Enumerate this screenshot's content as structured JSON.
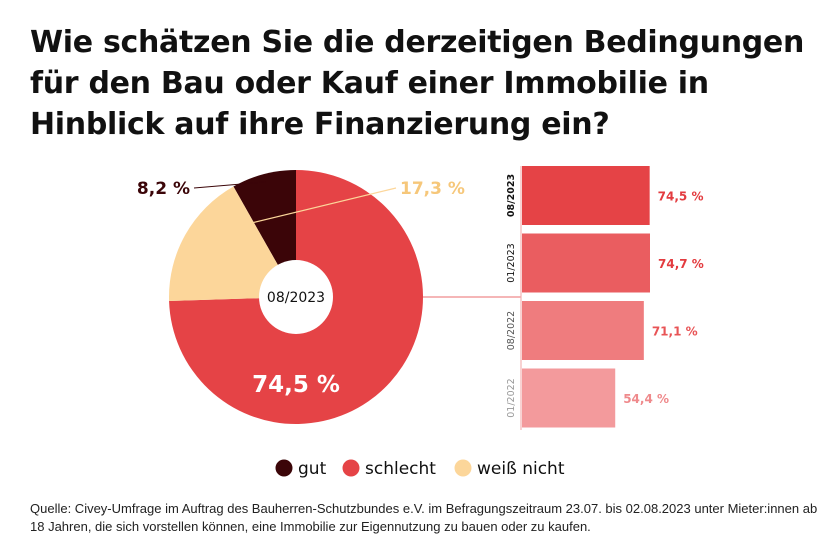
{
  "title": "Wie schätzen Sie die derzeitigen Bedingungen für den Bau oder Kauf einer Immobilie in Hinblick auf ihre Finanzierung ein?",
  "source": "Quelle: Civey-Umfrage im Auftrag des Bauherren-Schutzbundes e.V. im Befragungszeitraum 23.07. bis 02.08.2023 unter Mieter:innen ab 18 Jahren, die sich vorstellen können, eine Immobilie zur Eigennutzung zu bauen oder zu kaufen.",
  "colors": {
    "gut": "#3b0508",
    "schlecht": "#e54346",
    "weiss_nicht": "#fcd69a",
    "bars": [
      "#e54346",
      "#ea5d60",
      "#ef7c7e",
      "#f39a9c"
    ],
    "bar_labels": [
      "#e33b3f",
      "#e33b3f",
      "#e85456",
      "#ef8a8c"
    ],
    "period_labels": [
      "#111111",
      "#111111",
      "#555555",
      "#999999"
    ]
  },
  "chart_data": [
    {
      "type": "pie",
      "center_label": "08/2023",
      "slices": [
        {
          "name": "gut",
          "value": 8.2,
          "label": "8,2 %"
        },
        {
          "name": "schlecht",
          "value": 74.5,
          "label": "74,5 %"
        },
        {
          "name": "weiß nicht",
          "value": 17.3,
          "label": "17,3 %"
        }
      ],
      "legend": {
        "position": "bottom",
        "items": [
          "gut",
          "schlecht",
          "weiß nicht"
        ]
      }
    },
    {
      "type": "bar",
      "orientation": "horizontal",
      "categories": [
        "08/2023",
        "01/2023",
        "08/2022",
        "01/2022"
      ],
      "values": [
        74.5,
        74.7,
        71.1,
        54.4
      ],
      "labels": [
        "74,5 %",
        "74,7 %",
        "71,1 %",
        "54,4 %"
      ]
    }
  ]
}
